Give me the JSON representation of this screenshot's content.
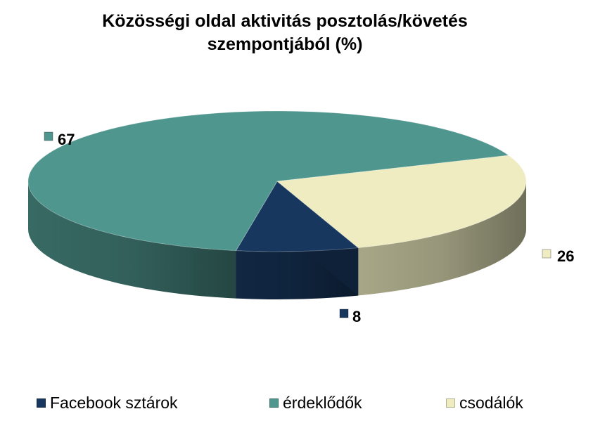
{
  "chart_data": {
    "type": "pie",
    "title": "Közösségi oldal  aktivitás posztolás/követés\nszempontjából (%)",
    "categories": [
      "Facebook sztárok",
      "érdeklődők",
      "csodálók"
    ],
    "values": [
      8,
      67,
      26
    ],
    "colors": [
      "#17375e",
      "#4f968e",
      "#eeecc0"
    ],
    "three_d": true,
    "legend_position": "bottom",
    "data_labels": [
      "8",
      "67",
      "26"
    ]
  }
}
